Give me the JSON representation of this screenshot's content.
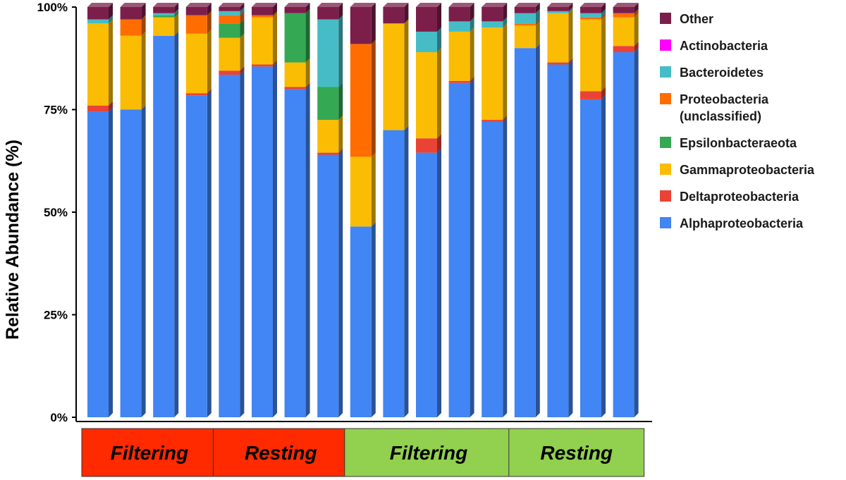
{
  "chart_data": {
    "type": "bar",
    "stacked": true,
    "ylabel": "Relative Abundance (%)",
    "ylim": [
      0,
      100
    ],
    "yticks": [
      "0%",
      "25%",
      "50%",
      "75%",
      "100%"
    ],
    "legend_position": "right",
    "groups": [
      {
        "label": "Filtering",
        "bars": 4,
        "color": "#ff2a00"
      },
      {
        "label": "Resting",
        "bars": 4,
        "color": "#ff2a00"
      },
      {
        "label": "Filtering",
        "bars": 5,
        "color": "#92d050"
      },
      {
        "label": "Resting",
        "bars": 4,
        "color": "#92d050"
      }
    ],
    "series": [
      {
        "name": "Alphaproteobacteria",
        "color": "#4285f4",
        "values": [
          74.5,
          75.0,
          93.0,
          78.5,
          83.5,
          85.5,
          80.0,
          64.0,
          46.5,
          70.0,
          64.5,
          81.5,
          72.0,
          90.0,
          86.0,
          77.5,
          89.0
        ]
      },
      {
        "name": "Deltaproteobacteria",
        "color": "#ea4335",
        "values": [
          1.5,
          0.0,
          0.0,
          0.5,
          1.0,
          0.5,
          0.5,
          0.5,
          0.0,
          0.0,
          3.5,
          0.5,
          0.5,
          0.0,
          0.5,
          2.0,
          1.5
        ]
      },
      {
        "name": "Gammaproteobacteria",
        "color": "#fbbc04",
        "values": [
          20.0,
          18.0,
          4.5,
          14.5,
          8.0,
          11.5,
          6.0,
          8.0,
          17.0,
          26.0,
          21.0,
          12.0,
          22.5,
          5.5,
          12.0,
          17.5,
          7.0
        ]
      },
      {
        "name": "Epsilonbacteraeota",
        "color": "#34a853",
        "values": [
          0.0,
          0.0,
          0.5,
          0.0,
          3.5,
          0.0,
          12.0,
          8.0,
          0.0,
          0.0,
          0.0,
          0.0,
          0.0,
          0.0,
          0.0,
          0.0,
          0.0
        ]
      },
      {
        "name": "Proteobacteria\n(unclassified)",
        "color": "#ff6d01",
        "values": [
          0.0,
          4.0,
          0.0,
          4.5,
          2.0,
          0.5,
          0.0,
          0.0,
          27.5,
          0.0,
          0.0,
          0.0,
          0.0,
          0.5,
          0.0,
          0.5,
          1.0
        ]
      },
      {
        "name": "Bacteroidetes",
        "color": "#46bdc6",
        "values": [
          1.0,
          0.0,
          0.5,
          0.0,
          1.0,
          0.0,
          0.0,
          16.5,
          0.0,
          0.0,
          5.0,
          2.5,
          1.5,
          2.5,
          0.5,
          1.0,
          0.0
        ]
      },
      {
        "name": "Actinobacteria",
        "color": "#ff00ff",
        "values": [
          0.0,
          0.0,
          0.0,
          0.0,
          0.0,
          0.0,
          0.0,
          0.0,
          0.0,
          0.0,
          0.0,
          0.0,
          0.0,
          0.0,
          0.0,
          0.0,
          0.0
        ]
      },
      {
        "name": "Other",
        "color": "#7b1f4a",
        "values": [
          3.0,
          3.0,
          1.5,
          2.0,
          1.0,
          2.0,
          1.5,
          3.0,
          9.0,
          4.0,
          6.0,
          3.5,
          3.5,
          1.5,
          1.0,
          1.5,
          1.5
        ]
      }
    ],
    "legend_order": [
      "Other",
      "Actinobacteria",
      "Bacteroidetes",
      "Proteobacteria\n(unclassified)",
      "Epsilonbacteraeota",
      "Gammaproteobacteria",
      "Deltaproteobacteria",
      "Alphaproteobacteria"
    ]
  }
}
